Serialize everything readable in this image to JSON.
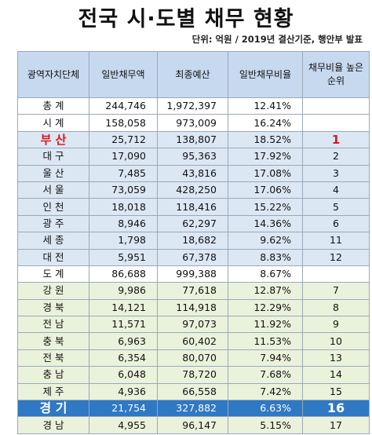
{
  "header": {
    "title": "전국 시·도별 채무 현황",
    "subtitle": "단위: 억원  / 2019년 결산기준, 행안부 발표"
  },
  "table": {
    "columns": [
      "광역자치단체",
      "일반채무액",
      "최종예산",
      "일반채무비율",
      "채무비율 높은 순위"
    ],
    "rows": [
      [
        "총 계",
        "244,746",
        "1,972,397",
        "12.41%",
        null
      ],
      [
        "시 계",
        "158,058",
        "973,009",
        "16.24%",
        null
      ],
      [
        "부 산",
        "25,712",
        "138,807",
        "18.52%",
        "1"
      ],
      [
        "대 구",
        "17,090",
        "95,363",
        "17.92%",
        "2"
      ],
      [
        "울 산",
        "7,485",
        "43,816",
        "17.08%",
        "3"
      ],
      [
        "서 울",
        "73,059",
        "428,250",
        "17.06%",
        "4"
      ],
      [
        "인 천",
        "18,018",
        "118,416",
        "15.22%",
        "5"
      ],
      [
        "광 주",
        "8,946",
        "62,297",
        "14.36%",
        "6"
      ],
      [
        "세 종",
        "1,798",
        "18,682",
        "9.62%",
        "11"
      ],
      [
        "대 전",
        "5,951",
        "67,378",
        "8.83%",
        "12"
      ],
      [
        "도 계",
        "86,688",
        "999,388",
        "8.67%",
        null
      ],
      [
        "강 원",
        "9,986",
        "77,618",
        "12.87%",
        "7"
      ],
      [
        "경 북",
        "14,121",
        "114,918",
        "12.29%",
        "8"
      ],
      [
        "전 남",
        "11,571",
        "97,073",
        "11.92%",
        "9"
      ],
      [
        "충 북",
        "6,963",
        "60,402",
        "11.53%",
        "10"
      ],
      [
        "전 북",
        "6,354",
        "80,070",
        "7.94%",
        "13"
      ],
      [
        "충 남",
        "6,048",
        "78,720",
        "7.68%",
        "14"
      ],
      [
        "제 주",
        "4,936",
        "66,558",
        "7.42%",
        "15"
      ],
      [
        "경 기",
        "21,754",
        "327,882",
        "6.63%",
        "16"
      ],
      [
        "경 남",
        "4,955",
        "96,147",
        "5.15%",
        "17"
      ]
    ]
  }
}
